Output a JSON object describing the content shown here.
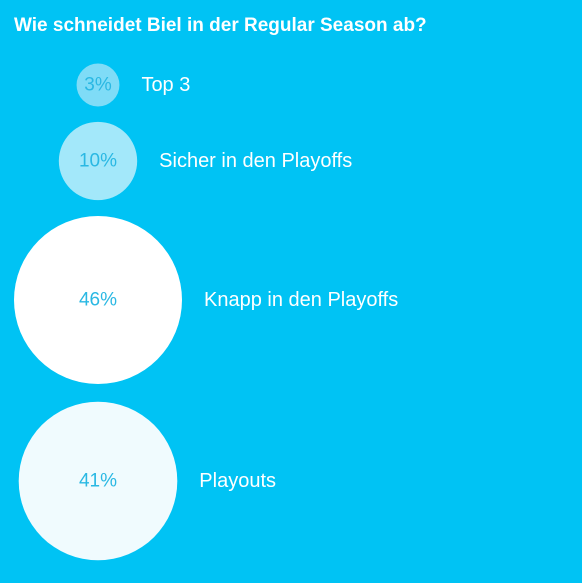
{
  "question": "Wie schneidet Biel in der Regular Season ab?",
  "chart_data": {
    "type": "bubble",
    "title": "Wie schneidet Biel in der Regular Season ab?",
    "categories": [
      "Top 3",
      "Sicher in den Playoffs",
      "Knapp in den Playoffs",
      "Playouts"
    ],
    "values": [
      3,
      10,
      46,
      41
    ],
    "value_labels": [
      "3%",
      "10%",
      "46%",
      "41%"
    ],
    "unit": "%",
    "colors": [
      "#7fdcf7",
      "#a3e8fa",
      "#ffffff",
      "#f0fbfe"
    ],
    "background": "#00c3f4",
    "label_color": "#ffffff",
    "value_text_color": "#2ab8e3"
  }
}
